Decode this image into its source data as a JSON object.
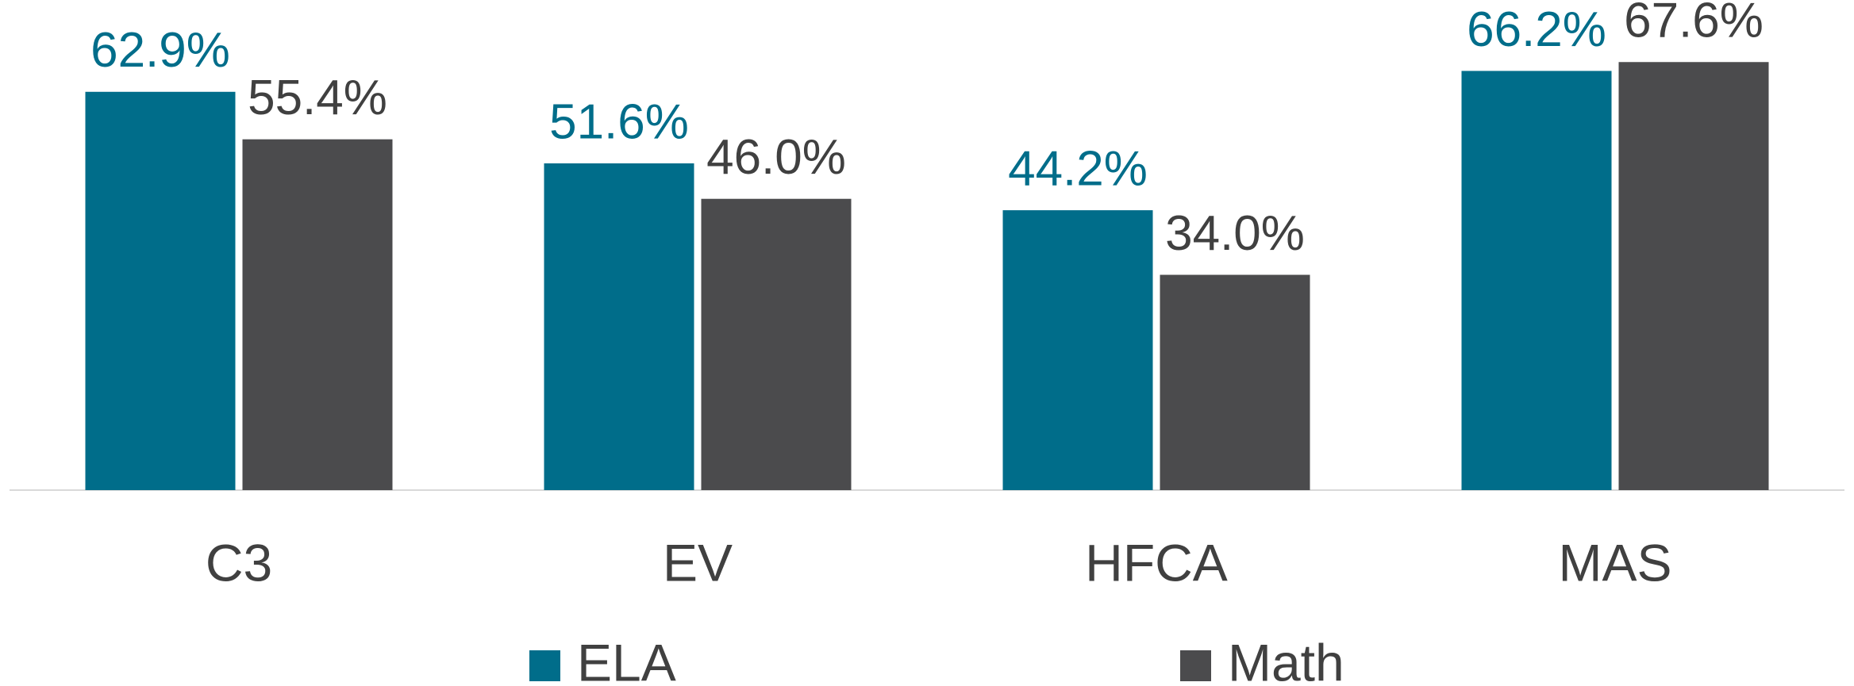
{
  "chart_data": {
    "type": "bar",
    "categories": [
      "C3",
      "EV",
      "HFCA",
      "MAS"
    ],
    "series": [
      {
        "name": "ELA",
        "color": "#006d8a",
        "values": [
          62.9,
          51.6,
          44.2,
          66.2
        ],
        "value_labels": [
          "62.9%",
          "51.6%",
          "44.2%",
          "66.2%"
        ]
      },
      {
        "name": "Math",
        "color": "#4b4b4d",
        "values": [
          55.4,
          46.0,
          34.0,
          67.6
        ],
        "value_labels": [
          "55.4%",
          "46.0%",
          "34.0%",
          "67.6%"
        ]
      }
    ],
    "ylim": [
      0,
      77.4
    ]
  }
}
